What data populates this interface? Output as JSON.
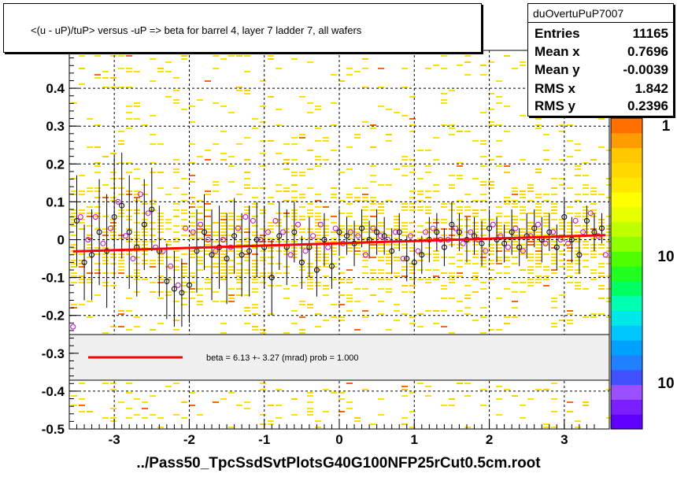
{
  "title": "<(u - uP)/tuP>  versus  -uP => beta for barrel 4, layer 7 ladder 7, all wafers",
  "stats": {
    "name": "duOvertuPuP7007",
    "rows": [
      {
        "label": "Entries",
        "value": "11165"
      },
      {
        "label": "Mean x",
        "value": "0.7696"
      },
      {
        "label": "Mean y",
        "value": "-0.0039"
      },
      {
        "label": "RMS x",
        "value": "1.842"
      },
      {
        "label": "RMS y",
        "value": "0.2396"
      }
    ]
  },
  "legend": {
    "text": "beta =    6.13 +-  3.27 (mrad) prob = 1.000",
    "color": "#ff0000"
  },
  "footer": "../Pass50_TpcSsdSvtPlotsG40G100NFP25rCut0.5cm.root",
  "colors": {
    "fit": "#ff0000",
    "black_points": "#000000",
    "magenta_points": "#cc00cc",
    "band": "#ffe000",
    "frame": "#000000"
  },
  "chart_data": {
    "type": "scatter",
    "xlim": [
      -3.6,
      3.6
    ],
    "ylim": [
      -0.5,
      0.5
    ],
    "xticks": [
      "-3",
      "-2",
      "-1",
      "0",
      "1",
      "2",
      "3"
    ],
    "yticks": [
      "-0.5",
      "-0.4",
      "-0.3",
      "-0.2",
      "-0.1",
      "0",
      "0.1",
      "0.2",
      "0.3",
      "0.4"
    ],
    "palette_labels": [
      "1",
      "10",
      "10"
    ],
    "fit": {
      "x": [
        -3.55,
        3.55
      ],
      "y": [
        -0.031,
        0.012
      ]
    },
    "series": [
      {
        "marker": "black-circle",
        "x": [
          -3.5,
          -3.4,
          -3.3,
          -3.2,
          -3.1,
          -3.0,
          -2.9,
          -2.8,
          -2.7,
          -2.6,
          -2.5,
          -2.4,
          -2.3,
          -2.2,
          -2.1,
          -2.0,
          -1.9,
          -1.8,
          -1.7,
          -1.6,
          -1.5,
          -1.4,
          -1.3,
          -1.2,
          -1.1,
          -1.0,
          -0.9,
          -0.8,
          -0.7,
          -0.6,
          -0.5,
          -0.4,
          -0.3,
          -0.2,
          -0.1,
          0.0,
          0.1,
          0.2,
          0.3,
          0.4,
          0.5,
          0.6,
          0.7,
          0.8,
          0.9,
          1.0,
          1.1,
          1.2,
          1.3,
          1.4,
          1.5,
          1.6,
          1.7,
          1.8,
          1.9,
          2.0,
          2.1,
          2.2,
          2.3,
          2.4,
          2.5,
          2.6,
          2.7,
          2.8,
          2.9,
          3.0,
          3.1,
          3.2,
          3.3,
          3.4,
          3.5
        ],
        "y": [
          0.05,
          -0.06,
          -0.04,
          0.02,
          -0.03,
          0.06,
          0.09,
          0.02,
          -0.02,
          0.04,
          0.08,
          -0.03,
          -0.11,
          -0.13,
          -0.14,
          -0.12,
          -0.03,
          0.02,
          -0.04,
          -0.02,
          -0.05,
          0.01,
          -0.04,
          -0.03,
          0.0,
          -0.02,
          -0.1,
          0.01,
          -0.02,
          0.02,
          -0.06,
          -0.02,
          -0.08,
          0.0,
          -0.07,
          0.02,
          0.01,
          -0.01,
          0.03,
          0.0,
          0.02,
          0.01,
          -0.03,
          0.02,
          -0.05,
          -0.06,
          -0.04,
          0.0,
          0.02,
          -0.02,
          0.04,
          0.02,
          0.0,
          0.01,
          -0.01,
          0.03,
          0.0,
          -0.01,
          0.02,
          -0.02,
          0.01,
          0.03,
          0.0,
          0.02,
          -0.02,
          0.06,
          0.0,
          -0.04,
          0.05,
          0.02,
          0.03
        ],
        "err": [
          0.12,
          0.1,
          0.12,
          0.14,
          0.15,
          0.16,
          0.14,
          0.15,
          0.13,
          0.12,
          0.11,
          0.12,
          0.1,
          0.1,
          0.09,
          0.1,
          0.11,
          0.1,
          0.12,
          0.11,
          0.12,
          0.1,
          0.11,
          0.12,
          0.1,
          0.11,
          0.1,
          0.09,
          0.1,
          0.08,
          0.07,
          0.08,
          0.07,
          0.07,
          0.06,
          0.06,
          0.05,
          0.06,
          0.05,
          0.05,
          0.06,
          0.05,
          0.06,
          0.05,
          0.06,
          0.06,
          0.05,
          0.06,
          0.05,
          0.05,
          0.06,
          0.05,
          0.06,
          0.05,
          0.06,
          0.05,
          0.06,
          0.05,
          0.06,
          0.05,
          0.06,
          0.05,
          0.06,
          0.05,
          0.06,
          0.05,
          0.06,
          0.05,
          0.04,
          0.05,
          0.04
        ]
      },
      {
        "marker": "magenta-circle",
        "x": [
          -3.55,
          -3.45,
          -3.35,
          -3.25,
          -3.15,
          -3.05,
          -2.95,
          -2.85,
          -2.75,
          -2.65,
          -2.55,
          -2.45,
          -2.35,
          -2.25,
          -2.15,
          -2.05,
          -1.95,
          -1.85,
          -1.75,
          -1.65,
          -1.55,
          -1.45,
          -1.35,
          -1.25,
          -1.15,
          -1.05,
          -0.95,
          -0.85,
          -0.75,
          -0.65,
          -0.55,
          -0.45,
          -0.35,
          -0.25,
          -0.15,
          -0.05,
          0.05,
          0.15,
          0.25,
          0.35,
          0.45,
          0.55,
          0.65,
          0.75,
          0.85,
          0.95,
          1.05,
          1.15,
          1.25,
          1.35,
          1.45,
          1.55,
          1.65,
          1.75,
          1.85,
          1.95,
          2.05,
          2.15,
          2.25,
          2.35,
          2.45,
          2.55,
          2.65,
          2.75,
          2.85,
          2.95,
          3.05,
          3.15,
          3.25,
          3.35,
          3.45,
          3.55
        ],
        "y": [
          -0.23,
          0.06,
          0.0,
          0.06,
          -0.01,
          0.03,
          0.1,
          0.01,
          -0.05,
          0.12,
          0.07,
          -0.02,
          -0.03,
          -0.07,
          -0.12,
          0.03,
          0.02,
          0.04,
          0.0,
          -0.03,
          0.0,
          -0.02,
          0.03,
          0.06,
          0.05,
          0.0,
          0.02,
          0.05,
          0.02,
          -0.04,
          0.04,
          -0.03,
          0.01,
          0.04,
          -0.02,
          0.03,
          -0.01,
          0.02,
          0.01,
          -0.04,
          0.03,
          0.01,
          0.0,
          0.02,
          -0.05,
          0.01,
          -0.03,
          0.02,
          0.03,
          0.0,
          0.0,
          0.03,
          -0.01,
          0.02,
          0.0,
          -0.03,
          0.04,
          0.01,
          -0.02,
          0.03,
          -0.03,
          0.01,
          0.04,
          -0.01,
          0.02,
          0.0,
          -0.01,
          0.05,
          0.02,
          0.07,
          0.01,
          -0.04
        ]
      }
    ]
  }
}
